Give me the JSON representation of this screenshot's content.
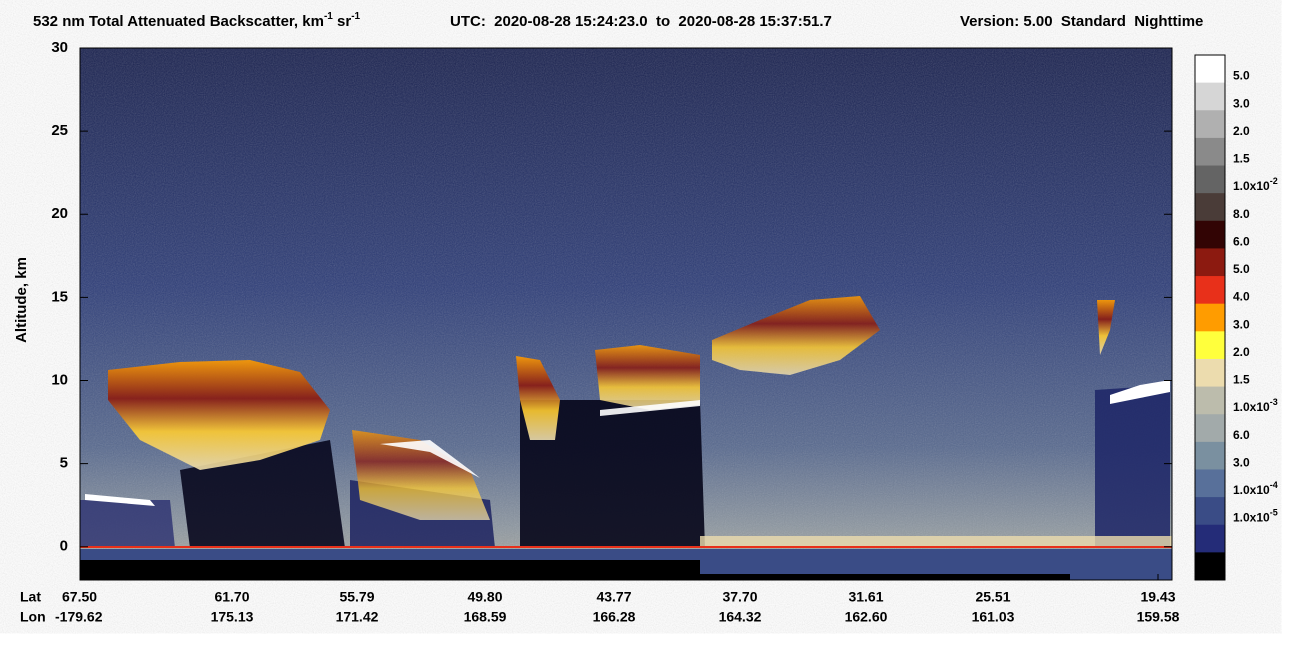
{
  "chart_data": {
    "type": "heatmap",
    "title": [
      "532 nm Total Attenuated Backscatter, km",
      "-1",
      " sr",
      "-1"
    ],
    "utc": "UTC:  2020-08-28 15:24:23.0  to  2020-08-28 15:37:51.7",
    "version": "Version: 5.00  Standard  Nighttime",
    "y_label": "Altitude, km",
    "ylim": [
      -2,
      30
    ],
    "yticks": [
      0,
      5,
      10,
      15,
      20,
      25,
      30
    ],
    "x_rows": [
      "Lat",
      "Lon"
    ],
    "lat": [
      "67.50",
      "61.70",
      "55.79",
      "49.80",
      "43.77",
      "37.70",
      "31.61",
      "25.51",
      "19.43"
    ],
    "lon": [
      "-179.62",
      "175.13",
      "171.42",
      "168.59",
      "166.28",
      "164.32",
      "162.60",
      "161.03",
      "159.58"
    ],
    "colorbar": {
      "colors": [
        "#ffffff",
        "#d6d6d6",
        "#b0b0b0",
        "#8a8a8a",
        "#646464",
        "#4a3c38",
        "#320404",
        "#8c1a10",
        "#e8301a",
        "#ff9c00",
        "#ffff3c",
        "#ecdcae",
        "#bcbcac",
        "#a2aaaa",
        "#7a90a0",
        "#58709a",
        "#3a4c86",
        "#242c78",
        "#000000"
      ],
      "labels": [
        {
          "label": "5.0"
        },
        {
          "label": "3.0"
        },
        {
          "label": "2.0"
        },
        {
          "label": "1.5"
        },
        {
          "label": "1.0x10",
          "sup": "-2"
        },
        {
          "label": "8.0"
        },
        {
          "label": "6.0"
        },
        {
          "label": "5.0"
        },
        {
          "label": "4.0"
        },
        {
          "label": "3.0"
        },
        {
          "label": "2.0"
        },
        {
          "label": "1.5"
        },
        {
          "label": "1.0x10",
          "sup": "-3"
        },
        {
          "label": "6.0"
        },
        {
          "label": "3.0"
        },
        {
          "label": "1.0x10",
          "sup": "-4"
        },
        {
          "label": "1.0x10",
          "sup": "-5"
        }
      ]
    }
  }
}
